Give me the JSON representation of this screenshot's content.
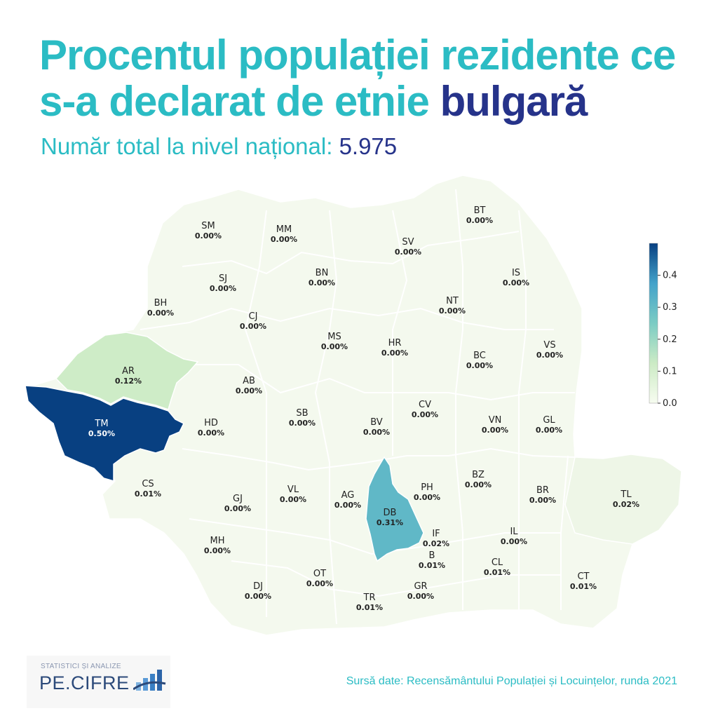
{
  "header": {
    "title_part1": "Procentul populației rezidente ce s-a declarat de etnie",
    "title_highlight": "bulgară",
    "subtitle_label": "Număr total la nivel național:",
    "subtitle_value": "5.975"
  },
  "colors": {
    "accent": "#2bbcc4",
    "highlight": "#26338a",
    "scale": [
      "#f7fcf0",
      "#ccebc5",
      "#7bccc4",
      "#43a2ca",
      "#084081"
    ]
  },
  "legend": {
    "min": 0.0,
    "max": 0.5,
    "ticks": [
      "0.0",
      "0.1",
      "0.2",
      "0.3",
      "0.4"
    ]
  },
  "counties": [
    {
      "code": "SM",
      "value": 0.0,
      "label": "0.00%"
    },
    {
      "code": "MM",
      "value": 0.0,
      "label": "0.00%"
    },
    {
      "code": "BT",
      "value": 0.0,
      "label": "0.00%"
    },
    {
      "code": "SV",
      "value": 0.0,
      "label": "0.00%"
    },
    {
      "code": "SJ",
      "value": 0.0,
      "label": "0.00%"
    },
    {
      "code": "BN",
      "value": 0.0,
      "label": "0.00%"
    },
    {
      "code": "IS",
      "value": 0.0,
      "label": "0.00%"
    },
    {
      "code": "BH",
      "value": 0.0,
      "label": "0.00%"
    },
    {
      "code": "CJ",
      "value": 0.0,
      "label": "0.00%"
    },
    {
      "code": "NT",
      "value": 0.0,
      "label": "0.00%"
    },
    {
      "code": "MS",
      "value": 0.0,
      "label": "0.00%"
    },
    {
      "code": "HR",
      "value": 0.0,
      "label": "0.00%"
    },
    {
      "code": "BC",
      "value": 0.0,
      "label": "0.00%"
    },
    {
      "code": "VS",
      "value": 0.0,
      "label": "0.00%"
    },
    {
      "code": "AR",
      "value": 0.12,
      "label": "0.12%"
    },
    {
      "code": "AB",
      "value": 0.0,
      "label": "0.00%"
    },
    {
      "code": "TM",
      "value": 0.5,
      "label": "0.50%"
    },
    {
      "code": "HD",
      "value": 0.0,
      "label": "0.00%"
    },
    {
      "code": "SB",
      "value": 0.0,
      "label": "0.00%"
    },
    {
      "code": "CV",
      "value": 0.0,
      "label": "0.00%"
    },
    {
      "code": "BV",
      "value": 0.0,
      "label": "0.00%"
    },
    {
      "code": "VN",
      "value": 0.0,
      "label": "0.00%"
    },
    {
      "code": "GL",
      "value": 0.0,
      "label": "0.00%"
    },
    {
      "code": "CS",
      "value": 0.01,
      "label": "0.01%"
    },
    {
      "code": "BZ",
      "value": 0.0,
      "label": "0.00%"
    },
    {
      "code": "GJ",
      "value": 0.0,
      "label": "0.00%"
    },
    {
      "code": "VL",
      "value": 0.0,
      "label": "0.00%"
    },
    {
      "code": "AG",
      "value": 0.0,
      "label": "0.00%"
    },
    {
      "code": "PH",
      "value": 0.0,
      "label": "0.00%"
    },
    {
      "code": "BR",
      "value": 0.0,
      "label": "0.00%"
    },
    {
      "code": "TL",
      "value": 0.02,
      "label": "0.02%"
    },
    {
      "code": "DB",
      "value": 0.31,
      "label": "0.31%"
    },
    {
      "code": "IF",
      "value": 0.02,
      "label": "0.02%"
    },
    {
      "code": "IL",
      "value": 0.0,
      "label": "0.00%"
    },
    {
      "code": "MH",
      "value": 0.0,
      "label": "0.00%"
    },
    {
      "code": "B",
      "value": 0.01,
      "label": "0.01%"
    },
    {
      "code": "CL",
      "value": 0.01,
      "label": "0.01%"
    },
    {
      "code": "OT",
      "value": 0.0,
      "label": "0.00%"
    },
    {
      "code": "CT",
      "value": 0.01,
      "label": "0.01%"
    },
    {
      "code": "DJ",
      "value": 0.0,
      "label": "0.00%"
    },
    {
      "code": "TR",
      "value": 0.01,
      "label": "0.01%"
    },
    {
      "code": "GR",
      "value": 0.0,
      "label": "0.00%"
    }
  ],
  "footer": {
    "logo_tagline": "STATISTICI ȘI ANALIZE",
    "logo_text": "PE.CIFRE",
    "source": "Sursă date: Recensământului Populației și Locuințelor, runda 2021"
  }
}
